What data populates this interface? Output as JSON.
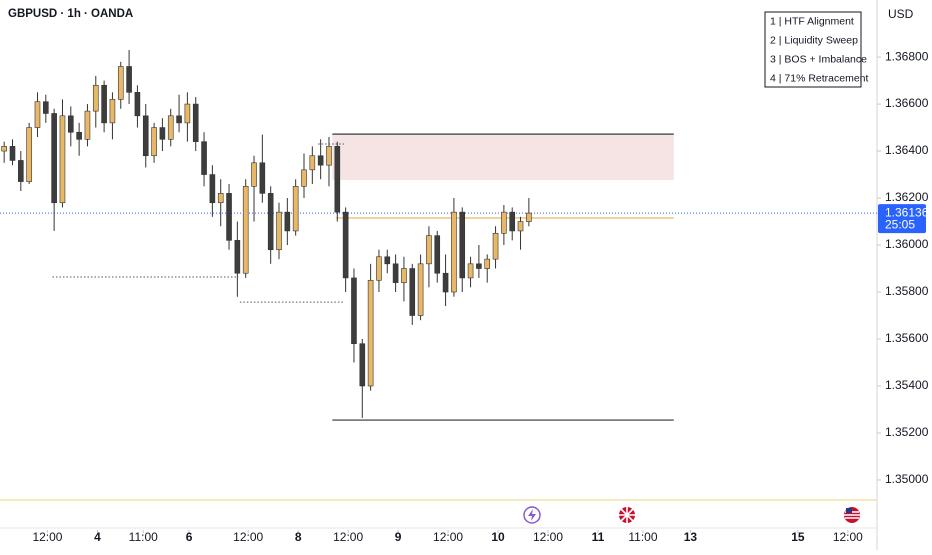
{
  "chart_data": {
    "type": "candlestick",
    "title": "GBPUSD · 1h · OANDA",
    "currency": "USD",
    "legend": [
      "1 | HTF Alignment",
      "2 | Liquidity Sweep",
      "3 | BOS + Imbalance",
      "4 | 71% Retracement"
    ],
    "up_color": "#e8b866",
    "down_color": "#3d3d3d",
    "open": [
      1.364,
      1.3642,
      1.3636,
      1.3627,
      1.365,
      1.3661,
      1.3656,
      1.3618,
      1.3655,
      1.3648,
      1.3645,
      1.3657,
      1.3668,
      1.3652,
      1.3662,
      1.3676,
      1.3665,
      1.3655,
      1.3638,
      1.365,
      1.3645,
      1.3655,
      1.3652,
      1.366,
      1.3644,
      1.363,
      1.3618,
      1.3622,
      1.3602,
      1.3588,
      1.3625,
      1.3635,
      1.3622,
      1.3598,
      1.3614,
      1.3606,
      1.3625,
      1.3632,
      1.3638,
      1.3634,
      1.3642,
      1.3614,
      1.3586,
      1.3558,
      1.354,
      1.3585,
      1.3595,
      1.3592,
      1.3584,
      1.359,
      1.357,
      1.3592,
      1.3604,
      1.3588,
      1.358,
      1.3614,
      1.3586,
      1.3592,
      1.359,
      1.3594,
      1.3605,
      1.3614,
      1.3606,
      1.361
    ],
    "high": [
      1.3644,
      1.3645,
      1.364,
      1.3652,
      1.3665,
      1.3664,
      1.3658,
      1.3662,
      1.3659,
      1.3652,
      1.366,
      1.3672,
      1.367,
      1.3665,
      1.3678,
      1.3683,
      1.3668,
      1.366,
      1.3652,
      1.3654,
      1.3658,
      1.3664,
      1.3665,
      1.3663,
      1.3648,
      1.3634,
      1.3628,
      1.3626,
      1.361,
      1.3628,
      1.3638,
      1.3647,
      1.3625,
      1.3618,
      1.362,
      1.3628,
      1.3639,
      1.3642,
      1.3645,
      1.3646,
      1.3644,
      1.3616,
      1.359,
      1.356,
      1.3592,
      1.3598,
      1.3598,
      1.3596,
      1.3595,
      1.3592,
      1.3596,
      1.3608,
      1.3606,
      1.3596,
      1.362,
      1.3616,
      1.3595,
      1.36,
      1.3596,
      1.3608,
      1.3617,
      1.3616,
      1.3612,
      1.362
    ],
    "low": [
      1.3635,
      1.3634,
      1.3623,
      1.3626,
      1.3646,
      1.3652,
      1.3606,
      1.3616,
      1.3642,
      1.3638,
      1.3642,
      1.365,
      1.3648,
      1.3645,
      1.3658,
      1.366,
      1.365,
      1.3633,
      1.3635,
      1.364,
      1.3642,
      1.3648,
      1.3644,
      1.364,
      1.3625,
      1.3612,
      1.3608,
      1.3598,
      1.3578,
      1.3586,
      1.361,
      1.3618,
      1.3592,
      1.3594,
      1.36,
      1.3604,
      1.362,
      1.3626,
      1.3628,
      1.3625,
      1.361,
      1.358,
      1.355,
      1.35264,
      1.3538,
      1.358,
      1.3588,
      1.358,
      1.3576,
      1.3566,
      1.3568,
      1.3582,
      1.3584,
      1.3574,
      1.3578,
      1.358,
      1.3582,
      1.3586,
      1.3584,
      1.359,
      1.36,
      1.3602,
      1.3598,
      1.3608
    ],
    "close": [
      1.3642,
      1.3636,
      1.3627,
      1.365,
      1.3661,
      1.3656,
      1.3618,
      1.3655,
      1.3648,
      1.3645,
      1.3657,
      1.3668,
      1.3652,
      1.3662,
      1.3676,
      1.3665,
      1.3655,
      1.3638,
      1.365,
      1.3645,
      1.3655,
      1.3652,
      1.366,
      1.3644,
      1.363,
      1.3618,
      1.3622,
      1.3602,
      1.3588,
      1.3625,
      1.3635,
      1.3622,
      1.3598,
      1.3614,
      1.3606,
      1.3625,
      1.3632,
      1.3638,
      1.3634,
      1.3642,
      1.3614,
      1.3586,
      1.3558,
      1.354,
      1.3585,
      1.3595,
      1.3592,
      1.3584,
      1.359,
      1.357,
      1.3592,
      1.3604,
      1.3588,
      1.358,
      1.3614,
      1.3586,
      1.3592,
      1.359,
      1.3594,
      1.3605,
      1.3614,
      1.3606,
      1.361,
      1.36136
    ],
    "last_price": 1.36136,
    "countdown": "25:05",
    "ylim": [
      1.34787,
      1.37043
    ],
    "yticks": [
      {
        "value": 1.368,
        "label": "1.36800"
      },
      {
        "value": 1.366,
        "label": "1.36600"
      },
      {
        "value": 1.364,
        "label": "1.36400"
      },
      {
        "value": 1.362,
        "label": "1.36200"
      },
      {
        "value": 1.36,
        "label": "1.36000"
      },
      {
        "value": 1.358,
        "label": "1.35800"
      },
      {
        "value": 1.356,
        "label": "1.35600"
      },
      {
        "value": 1.354,
        "label": "1.35400"
      },
      {
        "value": 1.352,
        "label": "1.35200"
      },
      {
        "value": 1.35,
        "label": "1.35000"
      }
    ],
    "xlim": [
      -0.5,
      104.8
    ],
    "xticks": [
      {
        "value": 5.2,
        "label": "12:00"
      },
      {
        "value": 11.2,
        "label": "4"
      },
      {
        "value": 16.7,
        "label": "11:00"
      },
      {
        "value": 22.2,
        "label": "6"
      },
      {
        "value": 29.3,
        "label": "12:00"
      },
      {
        "value": 35.3,
        "label": "8"
      },
      {
        "value": 41.3,
        "label": "12:00"
      },
      {
        "value": 47.3,
        "label": "9"
      },
      {
        "value": 53.3,
        "label": "12:00"
      },
      {
        "value": 59.3,
        "label": "10"
      },
      {
        "value": 65.3,
        "label": "12:00"
      },
      {
        "value": 71.3,
        "label": "11"
      },
      {
        "value": 76.7,
        "label": "11:00"
      },
      {
        "value": 82.4,
        "label": "13"
      },
      {
        "value": 95.3,
        "label": "15"
      },
      {
        "value": 101.3,
        "label": "12:00"
      }
    ],
    "zone": {
      "x": [
        39.4,
        80.4
      ],
      "y": [
        1.36277,
        1.36468
      ],
      "color": "#f6e3e3"
    },
    "levels": [
      {
        "value": 1.36472,
        "x": [
          39.4,
          80.4
        ],
        "color": "#333333",
        "style": "solid"
      },
      {
        "value": 1.35255,
        "x": [
          39.4,
          80.4
        ],
        "color": "#333333",
        "style": "solid"
      },
      {
        "value": 1.36115,
        "x": [
          39.8,
          80.4
        ],
        "color": "#e8b866",
        "style": "solid"
      },
      {
        "value": 1.35864,
        "x": [
          5.8,
          28.1
        ],
        "color": "#555555",
        "style": "dotted"
      },
      {
        "value": 1.35757,
        "x": [
          28.3,
          40.9
        ],
        "color": "#555555",
        "style": "dotted"
      },
      {
        "value": 1.3643,
        "x": [
          37.7,
          40.9
        ],
        "color": "#555555",
        "style": "dotted"
      },
      {
        "value": 1.34915,
        "x": [
          -0.5,
          104.8
        ],
        "color": "#f0d98a",
        "style": "solid"
      }
    ]
  }
}
